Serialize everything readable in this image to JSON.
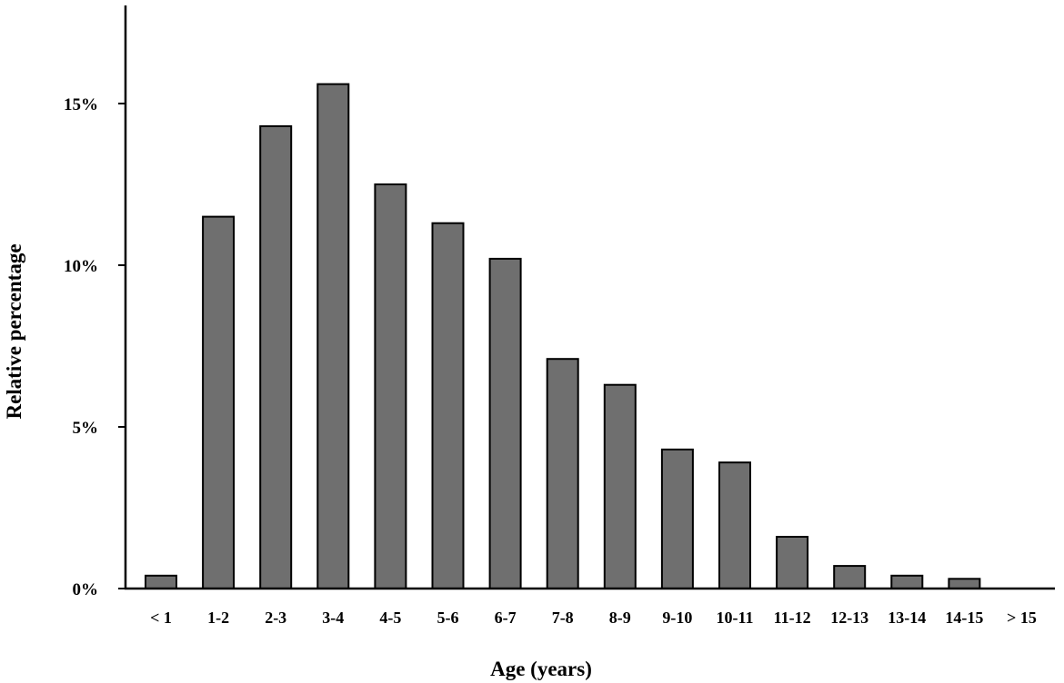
{
  "chart_data": {
    "type": "bar",
    "title": "",
    "xlabel": "Age (years)",
    "ylabel": "Relative percentage",
    "categories": [
      "< 1",
      "1-2",
      "2-3",
      "3-4",
      "4-5",
      "5-6",
      "6-7",
      "7-8",
      "8-9",
      "9-10",
      "10-11",
      "11-12",
      "12-13",
      "13-14",
      "14-15",
      "> 15"
    ],
    "values": [
      0.4,
      11.5,
      14.3,
      15.6,
      12.5,
      11.3,
      10.2,
      7.1,
      6.3,
      4.3,
      3.9,
      1.6,
      0.7,
      0.4,
      0.3,
      0
    ],
    "ylim": [
      0,
      18.2
    ],
    "yticks": [
      0,
      5,
      10,
      15
    ],
    "ytick_labels": [
      "0%",
      "5%",
      "10%",
      "15%"
    ],
    "grid": false,
    "legend": "none",
    "bar_color": "#6f6f6f",
    "bar_edge_color": "#000000"
  }
}
